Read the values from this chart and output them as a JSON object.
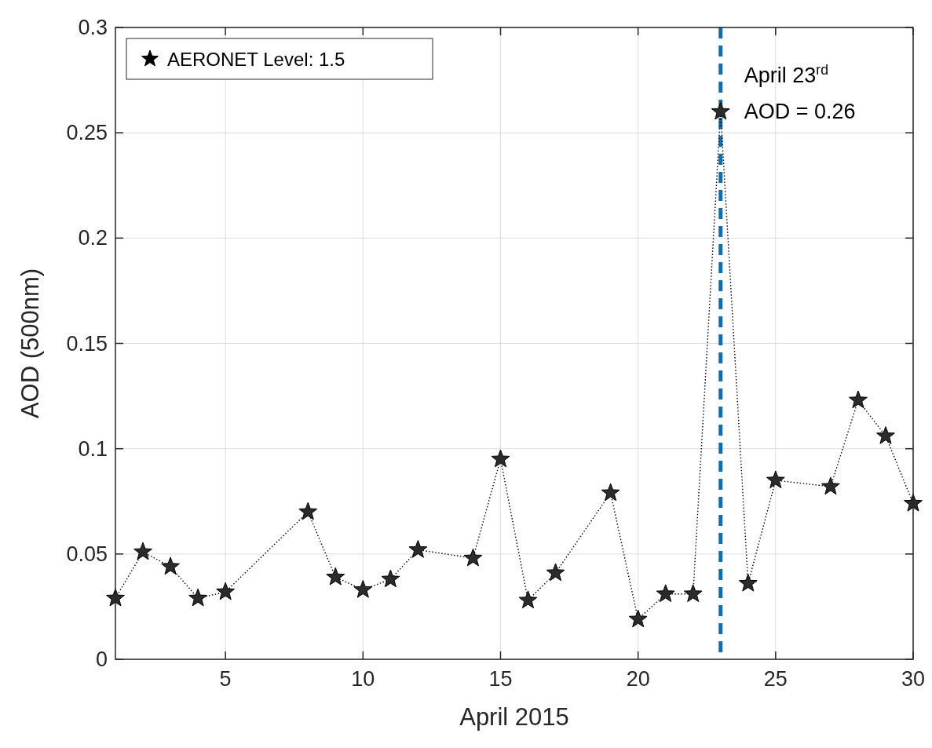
{
  "chart_data": {
    "type": "line",
    "xlabel": "April 2015",
    "ylabel": "AOD (500nm)",
    "xlim": [
      1,
      30
    ],
    "xticks": [
      5,
      10,
      15,
      20,
      25,
      30
    ],
    "ylim": [
      0,
      0.3
    ],
    "yticks": [
      0,
      0.05,
      0.1,
      0.15,
      0.2,
      0.25,
      0.3
    ],
    "grid": true,
    "legend": "top left",
    "marker": "star",
    "line_style": "dotted",
    "series": [
      {
        "name": "AERONET Level: 1.5",
        "color": "#000000",
        "x": [
          1,
          2,
          3,
          4,
          5,
          8,
          9,
          10,
          11,
          12,
          14,
          15,
          16,
          17,
          19,
          20,
          21,
          22,
          23,
          24,
          25,
          27,
          28,
          29,
          30
        ],
        "values": [
          0.029,
          0.051,
          0.044,
          0.029,
          0.032,
          0.07,
          0.039,
          0.033,
          0.038,
          0.052,
          0.048,
          0.095,
          0.028,
          0.041,
          0.079,
          0.019,
          0.031,
          0.031,
          0.26,
          0.036,
          0.085,
          0.082,
          0.123,
          0.106,
          0.074
        ]
      }
    ],
    "ref_lines": [
      {
        "axis": "x",
        "value": 23,
        "color": "#0072bd",
        "line_style": "dashed"
      }
    ],
    "annotations": [
      "April 23$^{rd}$",
      {
        "text": "AOD = 0.26",
        "x": 23,
        "y": 0.26
      }
    ]
  }
}
